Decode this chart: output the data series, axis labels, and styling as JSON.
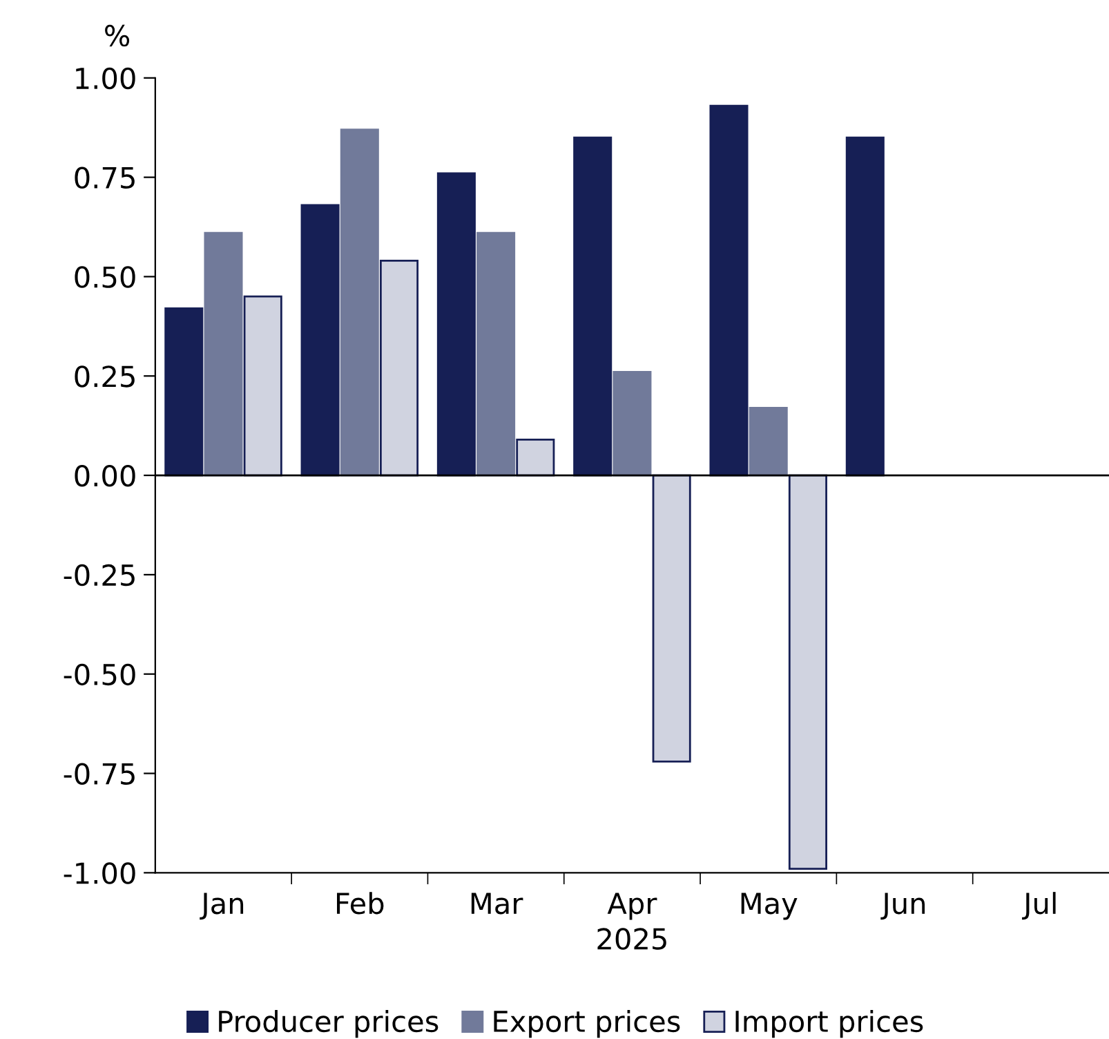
{
  "chart_data": {
    "type": "bar",
    "ylabel": "%",
    "xlabel": "2025",
    "categories": [
      "Jan",
      "Feb",
      "Mar",
      "Apr",
      "May",
      "Jun",
      "Jul"
    ],
    "series": [
      {
        "name": "Producer prices",
        "color": "#161f55",
        "values": [
          0.42,
          0.68,
          0.76,
          0.85,
          0.93,
          0.85,
          null
        ]
      },
      {
        "name": "Export prices",
        "color": "#717a9a",
        "values": [
          0.61,
          0.87,
          0.61,
          0.26,
          0.17,
          null,
          null
        ]
      },
      {
        "name": "Import prices",
        "color": "#d0d3e0",
        "values": [
          0.45,
          0.54,
          0.09,
          -0.72,
          -0.99,
          null,
          null
        ]
      }
    ],
    "ylim": [
      -1.0,
      1.0
    ],
    "yticks": [
      {
        "value": -1.0,
        "label": "-1.00"
      },
      {
        "value": -0.75,
        "label": "-0.75"
      },
      {
        "value": -0.5,
        "label": "-0.50"
      },
      {
        "value": -0.25,
        "label": "-0.25"
      },
      {
        "value": 0.0,
        "label": "0.00"
      },
      {
        "value": 0.25,
        "label": "0.25"
      },
      {
        "value": 0.5,
        "label": "0.50"
      },
      {
        "value": 0.75,
        "label": "0.75"
      },
      {
        "value": 1.0,
        "label": "1.00"
      }
    ],
    "ref_lines": [
      {
        "axis": "y",
        "value": 0,
        "color": "#000000"
      }
    ],
    "grid": false,
    "legend": "bottom"
  }
}
